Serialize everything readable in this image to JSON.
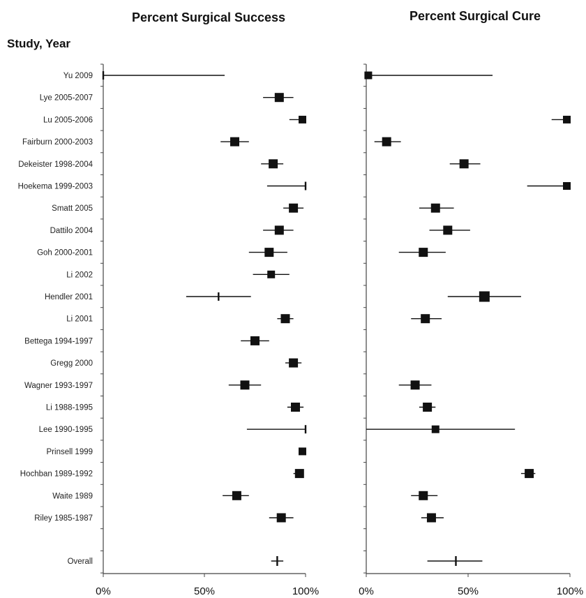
{
  "chart_data": {
    "type": "forest",
    "row_header": "Study, Year",
    "studies": [
      "Yu 2009",
      "Lye 2005-2007",
      "Lu 2005-2006",
      "Fairburn 2000-2003",
      "Dekeister 1998-2004",
      "Hoekema 1999-2003",
      "Smatt 2005",
      "Dattilo 2004",
      "Goh 2000-2001",
      "Li 2002",
      "Hendler 2001",
      "Li 2001",
      "Bettega 1994-1997",
      "Gregg 2000",
      "Wagner 1993-1997",
      "Li 1988-1995",
      "Lee 1990-1995",
      "Prinsell 1999",
      "Hochban 1989-1992",
      "Waite 1989",
      "Riley 1985-1987"
    ],
    "overall_label": "Overall",
    "panels": [
      {
        "title": "Percent Surgical Success",
        "xlim": [
          0,
          100
        ],
        "x_ticks": [
          "0%",
          "50%",
          "100%"
        ],
        "estimates": [
          0,
          87,
          99,
          65,
          84,
          100,
          94,
          87,
          82,
          83,
          57,
          90,
          75,
          94,
          70,
          95,
          100,
          99,
          97,
          66,
          88
        ],
        "lower": [
          0,
          79,
          92,
          58,
          78,
          81,
          89,
          79,
          72,
          74,
          41,
          86,
          68,
          90,
          62,
          91,
          71,
          97,
          94,
          59,
          82
        ],
        "upper": [
          60,
          94,
          100,
          72,
          89,
          100,
          99,
          94,
          91,
          92,
          73,
          94,
          82,
          98,
          78,
          99,
          100,
          100,
          99,
          72,
          94
        ],
        "weights": [
          0,
          2,
          1,
          2,
          2,
          0,
          2,
          2,
          2,
          1,
          0,
          2,
          2,
          2,
          2,
          2,
          0,
          1,
          2,
          2,
          2
        ],
        "overall": {
          "estimate": 86,
          "lower": 83,
          "upper": 89
        }
      },
      {
        "title": "Percent Surgical Cure",
        "xlim": [
          0,
          100
        ],
        "x_ticks": [
          "0%",
          "50%",
          "100%"
        ],
        "estimates": [
          1,
          0,
          99,
          10,
          48,
          99,
          34,
          40,
          28,
          0,
          58,
          29,
          0,
          0,
          24,
          30,
          34,
          0,
          80,
          28,
          32
        ],
        "lower": [
          0,
          0,
          91,
          4,
          41,
          79,
          26,
          31,
          16,
          0,
          40,
          22,
          0,
          0,
          16,
          26,
          0,
          0,
          76,
          22,
          27
        ],
        "upper": [
          62,
          0,
          100,
          17,
          56,
          100,
          43,
          51,
          39,
          0,
          76,
          37,
          0,
          0,
          32,
          34,
          73,
          0,
          83,
          35,
          38
        ],
        "weights": [
          1,
          0,
          1,
          2,
          2,
          1,
          2,
          2,
          2,
          0,
          3,
          2,
          0,
          0,
          2,
          2,
          1,
          0,
          2,
          2,
          2
        ],
        "present": [
          true,
          false,
          true,
          true,
          true,
          true,
          true,
          true,
          true,
          false,
          true,
          true,
          false,
          false,
          true,
          true,
          true,
          false,
          true,
          true,
          true
        ],
        "overall": {
          "estimate": 44,
          "lower": 30,
          "upper": 57
        }
      }
    ]
  }
}
